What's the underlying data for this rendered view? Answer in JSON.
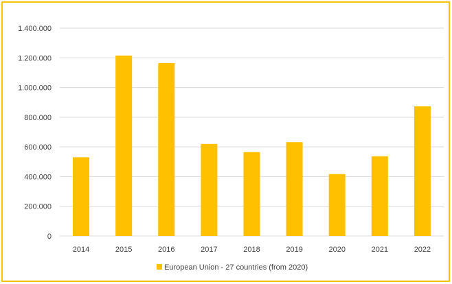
{
  "colors": {
    "bar": "#FFC000",
    "grid": "#d9d9d9",
    "border": "#f5c400",
    "text": "#404040"
  },
  "chart_data": {
    "type": "bar",
    "title": "",
    "xlabel": "",
    "ylabel": "",
    "categories": [
      "2014",
      "2015",
      "2016",
      "2017",
      "2018",
      "2019",
      "2020",
      "2021",
      "2022"
    ],
    "series": [
      {
        "name": "European Union - 27 countries (from 2020)",
        "values": [
          530000,
          1215000,
          1165000,
          620000,
          565000,
          632000,
          417000,
          537000,
          873000
        ]
      }
    ],
    "ylim": [
      0,
      1400000
    ],
    "yticks": [
      0,
      200000,
      400000,
      600000,
      800000,
      1000000,
      1200000,
      1400000
    ],
    "ytick_labels": [
      "0",
      "200.000",
      "400.000",
      "600.000",
      "800.000",
      "1.000.000",
      "1.200.000",
      "1.400.000"
    ],
    "grid": true,
    "legend_position": "bottom-center"
  }
}
